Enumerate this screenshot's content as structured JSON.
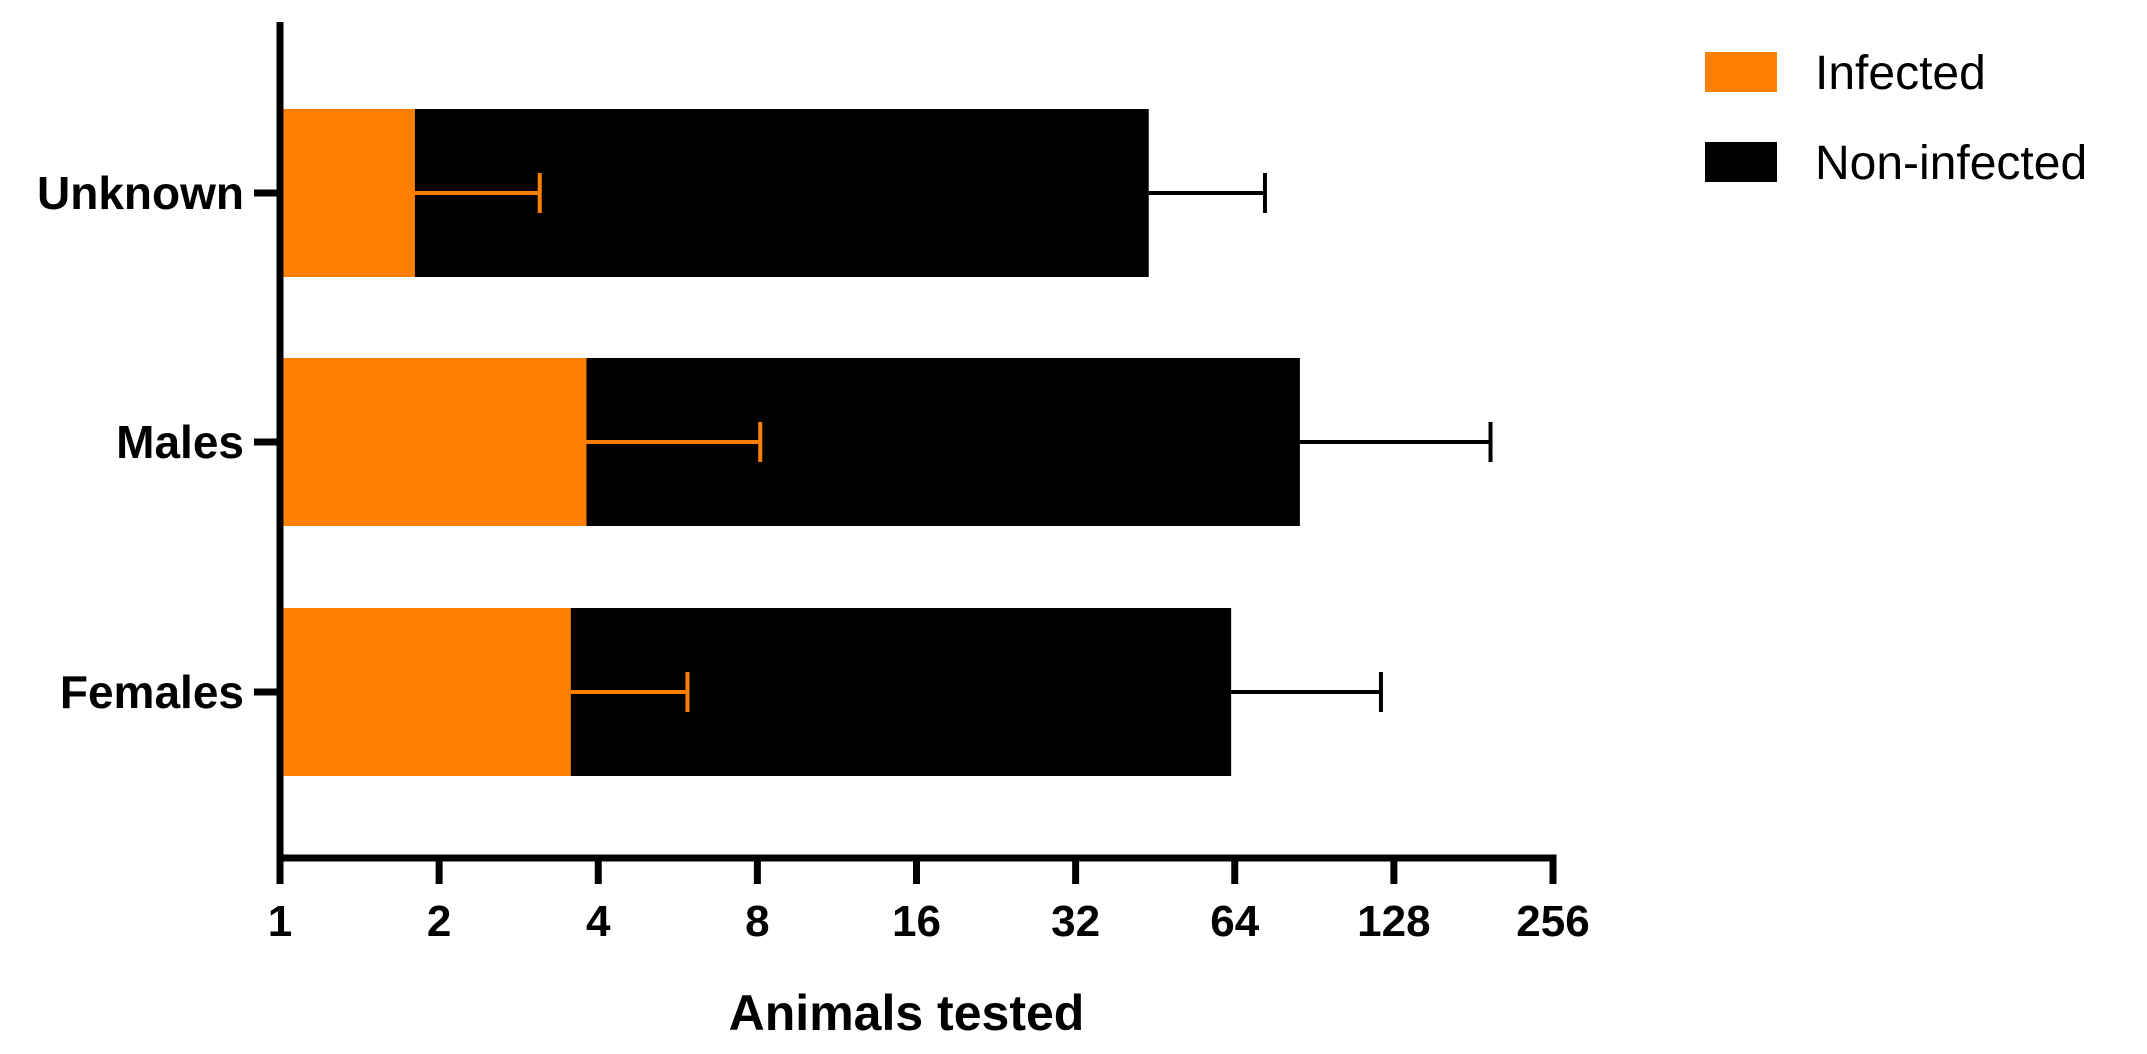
{
  "chart_data": {
    "type": "bar",
    "orientation": "horizontal",
    "stacking": "overlaid",
    "x_scale": "log2",
    "title": "",
    "xlabel": "Animals tested",
    "ylabel": "",
    "xlim": [
      1,
      256
    ],
    "x_ticks": [
      1,
      2,
      4,
      8,
      16,
      32,
      64,
      128,
      256
    ],
    "x_tick_labels": [
      "1",
      "2",
      "4",
      "8",
      "16",
      "32",
      "64",
      "128",
      "256"
    ],
    "categories": [
      "Unknown",
      "Males",
      "Females"
    ],
    "series": [
      {
        "name": "Non-infected",
        "color": "#000000",
        "values": [
          44,
          85,
          63
        ],
        "error_upper": [
          73,
          195,
          121
        ]
      },
      {
        "name": "Infected",
        "color": "#FF8000",
        "values": [
          1.8,
          3.8,
          3.55
        ],
        "error_upper": [
          3.1,
          8.1,
          5.9
        ]
      }
    ],
    "legend": {
      "position": "top-right",
      "entries": [
        {
          "label": "Infected",
          "color": "#FF8000"
        },
        {
          "label": "Non-infected",
          "color": "#000000"
        }
      ]
    },
    "grid": false
  }
}
